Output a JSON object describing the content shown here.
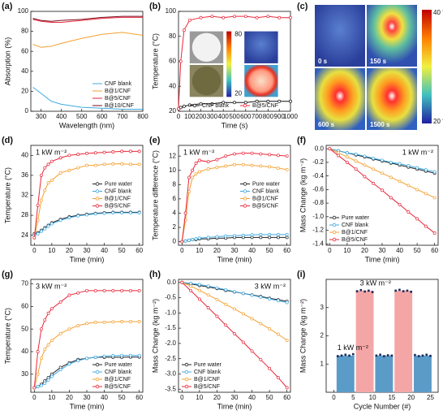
{
  "chart_data": [
    {
      "type": "line",
      "panel_label": "(a)",
      "x_label": "Wavelength (nm)",
      "y_label": "Absorption (%)",
      "x": [
        260,
        300,
        350,
        400,
        500,
        600,
        700,
        800
      ],
      "series": [
        {
          "name": "CNF blank",
          "color": "#3fa9e0",
          "values": [
            24,
            18,
            10,
            7,
            4,
            3,
            2,
            2
          ]
        },
        {
          "name": "B@1/CNF",
          "color": "#f5a030",
          "values": [
            67,
            64,
            65,
            68,
            73,
            77,
            79,
            76
          ]
        },
        {
          "name": "B@5/CNF",
          "color": "#e8273a",
          "values": [
            92,
            90,
            89,
            89,
            91,
            93,
            94,
            94
          ]
        },
        {
          "name": "B@10/CNF",
          "color": "#7b0d1e",
          "values": [
            93,
            91,
            90,
            91,
            92,
            94,
            95,
            95
          ]
        }
      ],
      "xlim": [
        250,
        800
      ],
      "xticks": [
        300,
        400,
        500,
        600,
        700,
        800
      ],
      "ylim": [
        0,
        100
      ],
      "yticks": [
        0,
        20,
        40,
        60,
        80,
        100
      ],
      "markers": false,
      "legend": "lower right"
    },
    {
      "type": "line",
      "panel_label": "(b)",
      "x_label": "Time (s)",
      "y_label": "Temperature (°C)",
      "x": [
        0,
        20,
        50,
        100,
        200,
        300,
        400,
        500,
        600,
        700,
        800,
        900,
        1000
      ],
      "series": [
        {
          "name": "CNF blank",
          "color": "#111111",
          "values": [
            22,
            23,
            24,
            25,
            26,
            26,
            27,
            27,
            27,
            28,
            28,
            28,
            28
          ]
        },
        {
          "name": "B@5/CNF",
          "color": "#e8273a",
          "values": [
            22,
            60,
            85,
            93,
            95,
            96,
            95,
            96,
            96,
            95,
            96,
            95,
            95
          ]
        }
      ],
      "xlim": [
        0,
        1000
      ],
      "xticks": [
        0,
        100,
        200,
        300,
        400,
        500,
        600,
        700,
        800,
        900,
        1000
      ],
      "ylim": [
        20,
        100
      ],
      "yticks": [
        20,
        40,
        60,
        80,
        100
      ],
      "markers": true,
      "legend": "lower right",
      "legend_orientation": "horizontal",
      "inset_colorbar_ticks": [
        80,
        20
      ]
    },
    {
      "type": "thermal",
      "panel_label": "(c)",
      "frames": [
        "0 s",
        "150 s",
        "600 s",
        "1500 s"
      ],
      "colorbar_labels": [
        "40 °C",
        "20 °C"
      ]
    },
    {
      "type": "line",
      "panel_label": "(d)",
      "x_label": "Time (min)",
      "y_label": "Temperature (°C)",
      "annotation": "1 kW m⁻²",
      "x": [
        0,
        2,
        4,
        6,
        8,
        10,
        15,
        20,
        25,
        30,
        35,
        40,
        45,
        50,
        55,
        60
      ],
      "series": [
        {
          "name": "Pure water",
          "color": "#222222",
          "values": [
            24.3,
            24.5,
            25,
            25.5,
            26,
            26.5,
            27.2,
            27.7,
            28,
            28.2,
            28.4,
            28.5,
            28.6,
            28.6,
            28.6,
            28.6
          ]
        },
        {
          "name": "CNF blank",
          "color": "#3fa9e0",
          "values": [
            24,
            24.3,
            24.8,
            25.3,
            25.8,
            26.3,
            27,
            27.5,
            27.9,
            28.1,
            28.3,
            28.4,
            28.5,
            28.5,
            28.5,
            28.5
          ]
        },
        {
          "name": "B@1/CNF",
          "color": "#f5a030",
          "values": [
            23.5,
            27,
            31,
            33,
            34.5,
            35,
            36.5,
            37,
            37.5,
            38,
            38,
            38.2,
            38.3,
            38.3,
            38.2,
            38.2
          ]
        },
        {
          "name": "B@5/CNF",
          "color": "#e8273a",
          "values": [
            23.5,
            30,
            36,
            37.5,
            38.2,
            38.8,
            39.5,
            40,
            40.2,
            40.4,
            40.5,
            40.6,
            40.7,
            40.8,
            40.8,
            40.8
          ]
        }
      ],
      "xlim": [
        -2,
        62
      ],
      "xticks": [
        0,
        10,
        20,
        30,
        40,
        50,
        60
      ],
      "ylim": [
        22,
        42
      ],
      "yticks": [
        24,
        28,
        32,
        36,
        40
      ],
      "markers": true,
      "legend": "center right"
    },
    {
      "type": "line",
      "panel_label": "(e)",
      "x_label": "Time (min)",
      "y_label": "Temperature difference (°C)",
      "annotation": "1 kW m⁻²",
      "x": [
        0,
        2,
        4,
        6,
        8,
        10,
        15,
        20,
        25,
        30,
        35,
        40,
        45,
        50,
        55,
        60
      ],
      "series": [
        {
          "name": "Pure water",
          "color": "#222222",
          "values": [
            0,
            0.1,
            0.2,
            0.3,
            0.3,
            0.4,
            0.4,
            0.5,
            0.5,
            0.6,
            0.6,
            0.6,
            0.6,
            0.6,
            0.6,
            0.6
          ]
        },
        {
          "name": "CNF blank",
          "color": "#3fa9e0",
          "values": [
            0,
            0.1,
            0.2,
            0.3,
            0.4,
            0.5,
            0.6,
            0.7,
            0.8,
            0.85,
            0.9,
            0.95,
            1,
            1,
            1,
            1
          ]
        },
        {
          "name": "B@1/CNF",
          "color": "#f5a030",
          "values": [
            0,
            3,
            7,
            9,
            9.5,
            9.8,
            10.2,
            10.4,
            10.6,
            10.8,
            10.8,
            10.7,
            10.6,
            10.5,
            10.3,
            10.1
          ]
        },
        {
          "name": "B@5/CNF",
          "color": "#e8273a",
          "values": [
            0,
            4,
            9,
            10,
            11,
            11.4,
            11.2,
            11.5,
            12,
            12.3,
            12.4,
            12.4,
            12.3,
            12.2,
            12.1,
            12
          ]
        }
      ],
      "xlim": [
        -2,
        62
      ],
      "xticks": [
        0,
        10,
        20,
        30,
        40,
        50,
        60
      ],
      "ylim": [
        -0.5,
        13.5
      ],
      "yticks": [
        0,
        2,
        4,
        6,
        8,
        10,
        12
      ],
      "markers": true,
      "legend": "center right"
    },
    {
      "type": "line",
      "panel_label": "(f)",
      "x_label": "Time (min)",
      "y_label": "Mass Change (kg m⁻²)",
      "annotation": "1 kW m⁻²",
      "annotation_position": "upper right",
      "x": [
        0,
        5,
        10,
        15,
        20,
        25,
        30,
        35,
        40,
        45,
        50,
        55,
        60
      ],
      "series": [
        {
          "name": "Pure water",
          "color": "#222222",
          "values": [
            0,
            -0.03,
            -0.06,
            -0.09,
            -0.12,
            -0.15,
            -0.18,
            -0.21,
            -0.24,
            -0.27,
            -0.3,
            -0.33,
            -0.36
          ]
        },
        {
          "name": "CNF blank",
          "color": "#3fa9e0",
          "values": [
            0,
            -0.03,
            -0.06,
            -0.08,
            -0.11,
            -0.14,
            -0.17,
            -0.2,
            -0.22,
            -0.25,
            -0.28,
            -0.31,
            -0.34
          ]
        },
        {
          "name": "B@1/CNF",
          "color": "#f5a030",
          "values": [
            0,
            -0.06,
            -0.12,
            -0.18,
            -0.24,
            -0.3,
            -0.36,
            -0.42,
            -0.48,
            -0.54,
            -0.6,
            -0.66,
            -0.72
          ]
        },
        {
          "name": "B@5/CNF",
          "color": "#e8273a",
          "values": [
            0,
            -0.1,
            -0.2,
            -0.3,
            -0.41,
            -0.51,
            -0.61,
            -0.72,
            -0.82,
            -0.93,
            -1.03,
            -1.14,
            -1.24
          ]
        }
      ],
      "xlim": [
        -2,
        62
      ],
      "xticks": [
        0,
        10,
        20,
        30,
        40,
        50,
        60
      ],
      "ylim": [
        -1.42,
        0.05
      ],
      "yticks": [
        {
          "value": 0,
          "label": "0.0"
        },
        -0.2,
        -0.4,
        -0.6,
        -0.8,
        {
          "value": -1,
          "label": "-1.0"
        },
        -1.2,
        -1.4
      ],
      "markers": true,
      "legend": "lower left"
    },
    {
      "type": "line",
      "panel_label": "(g)",
      "x_label": "Time (min)",
      "y_label": "Temperature (°C)",
      "annotation": "3 kW m⁻²",
      "x": [
        0,
        2,
        4,
        6,
        8,
        10,
        15,
        20,
        25,
        30,
        35,
        40,
        45,
        50,
        55,
        60
      ],
      "series": [
        {
          "name": "Pure water",
          "color": "#222222",
          "values": [
            24,
            24.5,
            25.5,
            27,
            28.5,
            30,
            33,
            35,
            36.5,
            37,
            37.5,
            37.5,
            37.5,
            37.5,
            37.6,
            37.6
          ]
        },
        {
          "name": "CNF blank",
          "color": "#3fa9e0",
          "values": [
            24,
            24.5,
            25,
            26,
            27.5,
            29,
            32,
            34.5,
            36,
            37,
            37.5,
            38,
            38.2,
            38.3,
            38.3,
            38.3
          ]
        },
        {
          "name": "B@1/CNF",
          "color": "#f5a030",
          "values": [
            24,
            30,
            37,
            41,
            43,
            45,
            48,
            50,
            51.5,
            52.5,
            53,
            53,
            53.2,
            53.3,
            53.3,
            53.3
          ]
        },
        {
          "name": "B@5/CNF",
          "color": "#e8273a",
          "values": [
            24,
            40,
            50,
            54,
            57,
            59,
            62,
            65,
            66,
            67,
            67,
            67,
            67,
            67,
            67,
            67
          ]
        }
      ],
      "xlim": [
        -2,
        62
      ],
      "xticks": [
        0,
        10,
        20,
        30,
        40,
        50,
        60
      ],
      "ylim": [
        22,
        72
      ],
      "yticks": [
        30,
        40,
        50,
        60,
        70
      ],
      "markers": true,
      "legend": "lower right"
    },
    {
      "type": "line",
      "panel_label": "(h)",
      "x_label": "Time (min)",
      "y_label": "Mass Change (kg m⁻²)",
      "annotation": "3 kW m⁻²",
      "annotation_position": "upper right",
      "x": [
        0,
        5,
        10,
        15,
        20,
        25,
        30,
        35,
        40,
        45,
        50,
        55,
        60
      ],
      "series": [
        {
          "name": "Pure water",
          "color": "#222222",
          "values": [
            0,
            -0.05,
            -0.1,
            -0.15,
            -0.2,
            -0.26,
            -0.31,
            -0.36,
            -0.41,
            -0.46,
            -0.52,
            -0.57,
            -0.62
          ]
        },
        {
          "name": "CNF blank",
          "color": "#3fa9e0",
          "values": [
            0,
            -0.03,
            -0.07,
            -0.12,
            -0.18,
            -0.24,
            -0.3,
            -0.36,
            -0.42,
            -0.48,
            -0.54,
            -0.6,
            -0.66
          ]
        },
        {
          "name": "B@1/CNF",
          "color": "#f5a030",
          "values": [
            0,
            -0.12,
            -0.26,
            -0.41,
            -0.56,
            -0.72,
            -0.87,
            -1.03,
            -1.19,
            -1.35,
            -1.52,
            -1.7,
            -1.9
          ]
        },
        {
          "name": "B@5/CNF",
          "color": "#e8273a",
          "values": [
            0,
            -0.27,
            -0.55,
            -0.83,
            -1.11,
            -1.4,
            -1.68,
            -1.96,
            -2.25,
            -2.53,
            -2.82,
            -3.12,
            -3.45
          ]
        }
      ],
      "xlim": [
        -2,
        62
      ],
      "xticks": [
        0,
        10,
        20,
        30,
        40,
        50,
        60
      ],
      "ylim": [
        -3.6,
        0.1
      ],
      "yticks": [
        {
          "value": 0,
          "label": "0.0"
        },
        -0.5,
        {
          "value": -1,
          "label": "-1.0"
        },
        -1.5,
        {
          "value": -2,
          "label": "-2.0"
        },
        -2.5,
        {
          "value": -3,
          "label": "-3.0"
        },
        -3.5
      ],
      "markers": true,
      "legend": "lower left"
    },
    {
      "type": "cycle-bar",
      "panel_label": "(i)",
      "x_label": "Cycle Number (#)",
      "y_label": "Mass Change (kg m⁻²)",
      "x": [
        3,
        8,
        13,
        18,
        23
      ],
      "values": [
        1.3,
        3.6,
        1.3,
        3.6,
        1.3
      ],
      "colors": [
        "#5b9bc8",
        "#f4a6a6",
        "#5b9bc8",
        "#f4a6a6",
        "#5b9bc8"
      ],
      "annotations": [
        "1 kW m⁻²",
        "3 kW m⁻²"
      ],
      "points": {
        "color": "#1a2a5a",
        "x": [
          1,
          2,
          3,
          4,
          5,
          6,
          7,
          8,
          9,
          10,
          11,
          12,
          13,
          14,
          15,
          16,
          17,
          18,
          19,
          20,
          21,
          22,
          23,
          24,
          25
        ],
        "values": [
          1.28,
          1.3,
          1.33,
          1.3,
          1.35,
          3.58,
          3.62,
          3.57,
          3.6,
          3.55,
          1.3,
          1.33,
          1.28,
          1.31,
          1.3,
          3.6,
          3.63,
          3.58,
          3.6,
          3.56,
          1.32,
          1.28,
          1.3,
          1.33,
          1.29
        ]
      },
      "xlim": [
        -2,
        27
      ],
      "xticks": [
        0,
        5,
        10,
        15,
        20,
        25
      ],
      "ylim": [
        0,
        4
      ],
      "yticks": [
        1,
        2,
        3
      ]
    }
  ]
}
